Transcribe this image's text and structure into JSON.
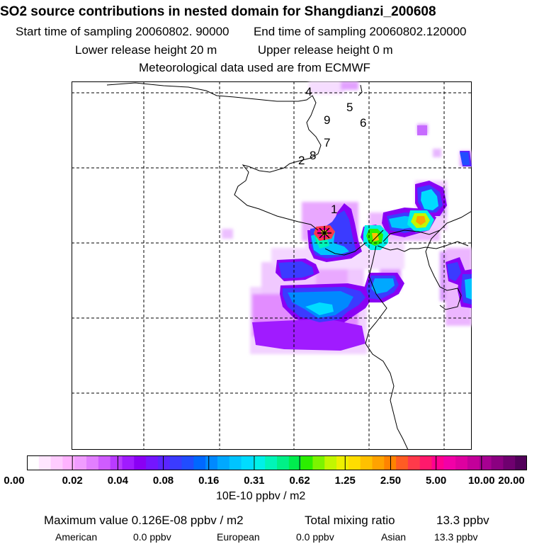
{
  "header": {
    "title": "SO2 source contributions in nested domain for Shangdianzi_200608",
    "start_label": "Start time of sampling 20060802. 90000",
    "end_label": "End time of sampling 20060802.120000",
    "lower_label": "Lower release height   20 m",
    "upper_label": "Upper release height    0 m",
    "met_label": "Meteorological data used are from ECMWF"
  },
  "map": {
    "station_marker": "star-marker",
    "contour_labels": [
      "4",
      "5",
      "9",
      "6",
      "7",
      "2",
      "8",
      "1"
    ]
  },
  "colorbar": {
    "unit": "10E-10 ppbv / m2",
    "tick_labels": [
      "0.00",
      "0.02",
      "0.04",
      "0.08",
      "0.16",
      "0.31",
      "0.62",
      "1.25",
      "2.50",
      "5.00",
      "10.00",
      "20.00"
    ],
    "colors": [
      "#ffffff",
      "#ffe6ff",
      "#ffccff",
      "#ffb3ff",
      "#f09cff",
      "#e27fff",
      "#cf5cff",
      "#b93bff",
      "#a01bff",
      "#8a00f4",
      "#7416ff",
      "#5a25ff",
      "#3b3bff",
      "#214dff",
      "#0068ff",
      "#0089ff",
      "#00a8ff",
      "#00c4ff",
      "#00dcff",
      "#00f0e8",
      "#00f5b8",
      "#00f087",
      "#00ec4e",
      "#2cee00",
      "#7cf400",
      "#c2f700",
      "#eef000",
      "#ffdd00",
      "#ffc000",
      "#ffa200",
      "#ff8300",
      "#ff5c23",
      "#ff3a4a",
      "#ff196c",
      "#ff0090",
      "#f200a7",
      "#de00a0",
      "#c3009a",
      "#a70092",
      "#8b0081",
      "#6f006f",
      "#52005a"
    ]
  },
  "summary": {
    "max_label": "Maximum value  0.126E-08 ppbv / m2",
    "total_label": "Total mixing ratio",
    "total_value": "13.3 ppbv"
  },
  "regions": [
    {
      "name": "American",
      "value": "0.0 ppbv"
    },
    {
      "name": "European",
      "value": "0.0 ppbv"
    },
    {
      "name": "Asian",
      "value": "13.3 ppbv"
    }
  ]
}
